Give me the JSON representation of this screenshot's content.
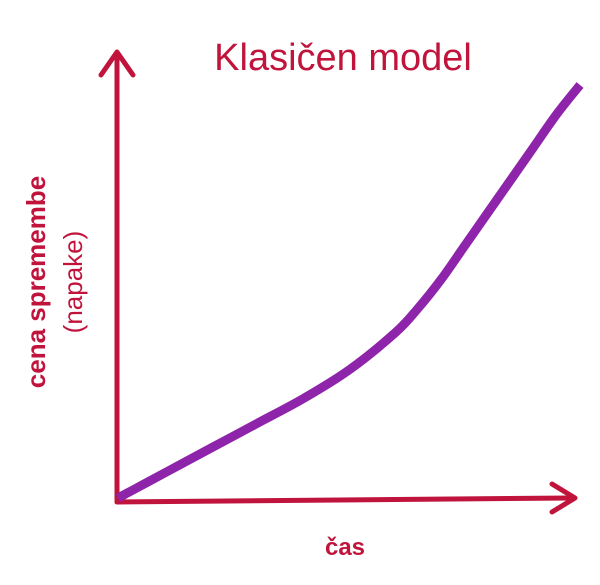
{
  "chart_data": {
    "type": "line",
    "title": "Klasičen model",
    "xlabel": "čas",
    "ylabel": "cena spremembe",
    "ylabel_sub": "(napake)",
    "ticks": "none",
    "grid": false,
    "series": [
      {
        "x": [
          0,
          0.1,
          0.2,
          0.3,
          0.4,
          0.5,
          0.6,
          0.65,
          0.7,
          0.75,
          0.8,
          0.85,
          0.9,
          0.95,
          1.0
        ],
        "y": [
          0,
          0.06,
          0.12,
          0.18,
          0.24,
          0.31,
          0.4,
          0.46,
          0.53,
          0.61,
          0.69,
          0.77,
          0.85,
          0.93,
          1.0
        ]
      }
    ]
  },
  "colors": {
    "axis": "#c0143c",
    "curve": "#8e24aa",
    "text": "#c0143c"
  }
}
